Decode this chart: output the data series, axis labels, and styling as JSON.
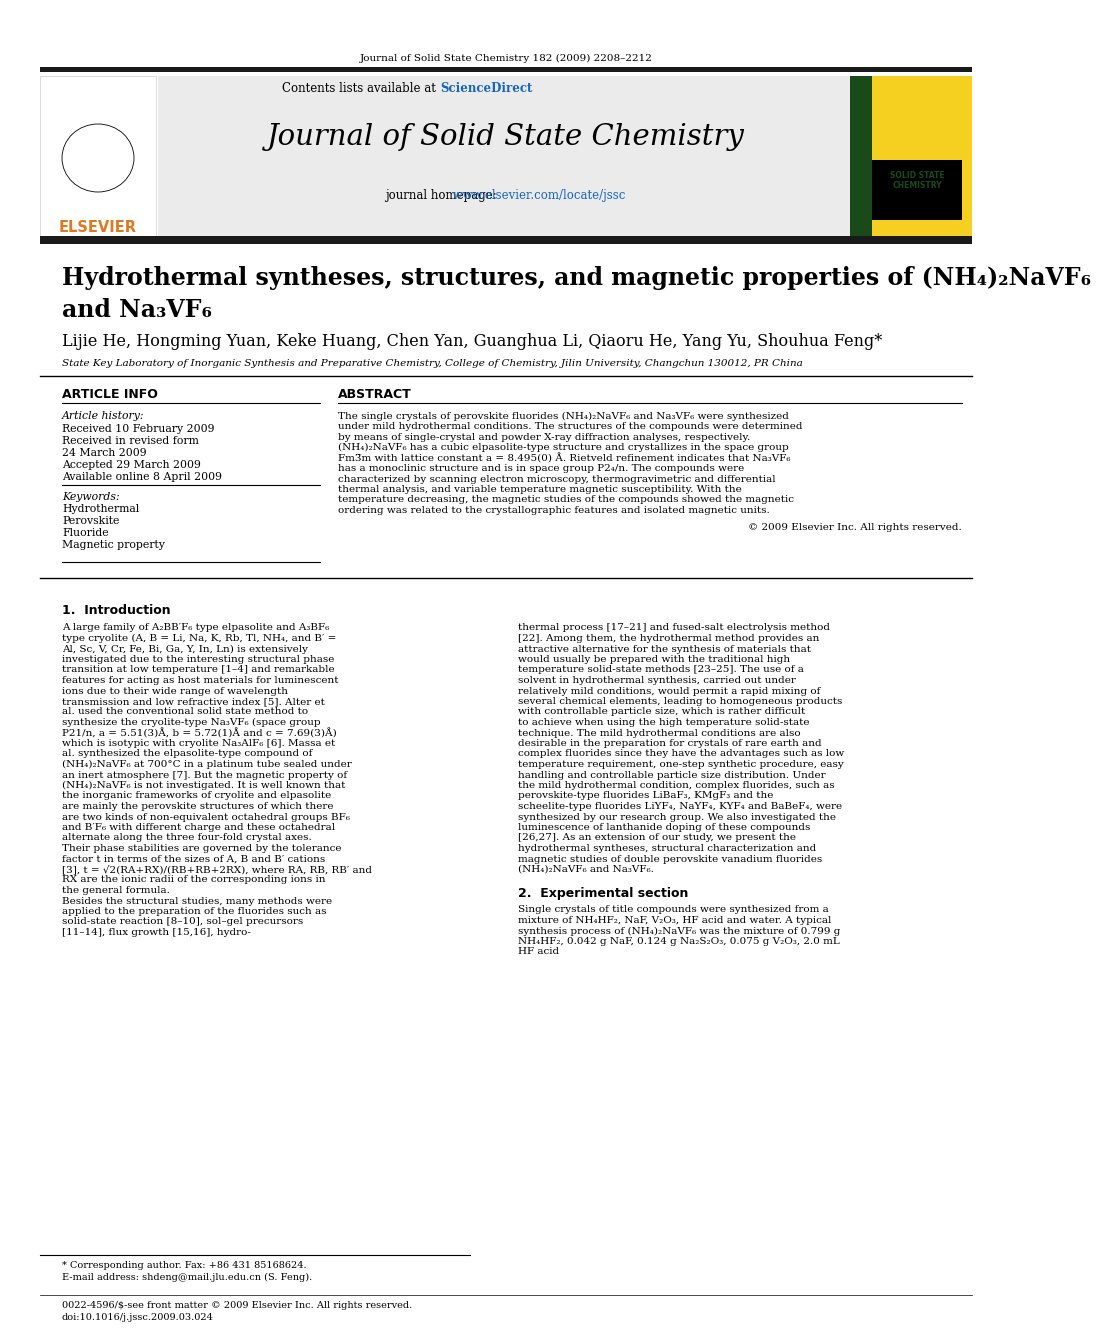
{
  "journal_header": "Journal of Solid State Chemistry 182 (2009) 2208–2212",
  "contents_line": "Contents lists available at ScienceDirect",
  "sciencedirect": "ScienceDirect",
  "journal_name": "Journal of Solid State Chemistry",
  "journal_homepage_plain": "journal homepage: ",
  "journal_homepage_url": "www.elsevier.com/locate/jssc",
  "title_line1": "Hydrothermal syntheses, structures, and magnetic properties of (NH₄)₂NaVF₆",
  "title_line2": "and Na₃VF₆",
  "authors": "Lijie He, Hongming Yuan, Keke Huang, Chen Yan, Guanghua Li, Qiaoru He, Yang Yu, Shouhua Feng*",
  "affiliation": "State Key Laboratory of Inorganic Synthesis and Preparative Chemistry, College of Chemistry, Jilin University, Changchun 130012, PR China",
  "article_info_header": "ARTICLE INFO",
  "article_history_label": "Article history:",
  "received_line": "Received 10 February 2009",
  "revised_line": "Received in revised form",
  "revised_date": "24 March 2009",
  "accepted_line": "Accepted 29 March 2009",
  "available_line": "Available online 8 April 2009",
  "keywords_label": "Keywords:",
  "keywords": [
    "Hydrothermal",
    "Perovskite",
    "Fluoride",
    "Magnetic property"
  ],
  "abstract_header": "ABSTRACT",
  "abstract_text": "The single crystals of perovskite fluorides (NH₄)₂NaVF₆ and Na₃VF₆ were synthesized under mild hydrothermal conditions. The structures of the compounds were determined by means of single-crystal and powder X-ray diffraction analyses, respectively. (NH₄)₂NaVF₆ has a cubic elpasolite-type structure and crystallizes in the space group Fm3̅m with lattice constant a = 8.495(0) Å. Rietveld refinement indicates that Na₃VF₆ has a monoclinic structure and is in space group P2₄/n. The compounds were characterized by scanning electron microscopy, thermogravimetric and differential thermal analysis, and variable temperature magnetic susceptibility. With the temperature decreasing, the magnetic studies of the compounds showed the magnetic ordering was related to the crystallographic features and isolated magnetic units.",
  "copyright_line": "© 2009 Elsevier Inc. All rights reserved.",
  "section1_header": "1.  Introduction",
  "intro_text": "   A large family of A₂BB′F₆ type elpasolite and A₃BF₆ type cryolite (A, B = Li, Na, K, Rb, Tl, NH₄, and B′ = Al, Sc, V, Cr, Fe, Bi, Ga, Y, In, Ln) is extensively investigated due to the interesting structural phase transition at low temperature [1–4] and remarkable features for acting as host materials for luminescent ions due to their wide range of wavelength transmission and low refractive index [5]. Alter et al. used the conventional solid state method to synthesize the cryolite-type Na₃VF₆ (space group P21/n, a = 5.51(3)Å, b = 5.72(1)Å and c = 7.69(3)Å) which is isotypic with cryolite Na₃AlF₆ [6]. Massa et al. synthesized the elpasolite-type compound of (NH₄)₂NaVF₆ at 700°C in a platinum tube sealed under an inert atmosphere [7]. But the magnetic property of (NH₄)₂NaVF₆ is not investigated. It is well known that the inorganic frameworks of cryolite and elpasolite are mainly the perovskite structures of which there are two kinds of non-equivalent octahedral groups BF₆ and B′F₆ with different charge and these octahedral alternate along the three four-fold crystal axes. Their phase stabilities are governed by the tolerance factor t in terms of the sizes of A, B and B′ cations [3], t = √2(RA+RX)/(RB+RB+2RX), where RA, RB, RB′ and RX are the ionic radii of the corresponding ions in the general formula.\n   Besides the structural studies, many methods were applied to the preparation of the fluorides such as solid-state reaction [8–10], sol–gel precursors [11–14], flux growth [15,16], hydro-",
  "right_col_intro": "thermal process [17–21] and fused-salt electrolysis method [22]. Among them, the hydrothermal method provides an attractive alternative for the synthesis of materials that would usually be prepared with the traditional high temperature solid-state methods [23–25]. The use of a solvent in hydrothermal synthesis, carried out under relatively mild conditions, would permit a rapid mixing of several chemical elements, leading to homogeneous products with controllable particle size, which is rather difficult to achieve when using the high temperature solid-state technique. The mild hydrothermal conditions are also desirable in the preparation for crystals of rare earth and complex fluorides since they have the advantages such as low temperature requirement, one-step synthetic procedure, easy handling and controllable particle size distribution. Under the mild hydrothermal condition, complex fluorides, such as perovskite-type fluorides LiBaF₃, KMgF₃ and the scheelite-type fluorides LiYF₄, NaYF₄, KYF₄ and BaBeF₄, were synthesized by our research group. We also investigated the luminescence of lanthanide doping of these compounds [26,27]. As an extension of our study, we present the hydrothermal syntheses, structural characterization and magnetic studies of double perovskite vanadium fluorides (NH₄)₂NaVF₆ and Na₃VF₆.",
  "section2_header": "2.  Experimental section",
  "section2_text": "   Single crystals of title compounds were synthesized from a mixture of NH₄HF₂, NaF, V₂O₃, HF acid and water. A typical synthesis process of (NH₄)₂NaVF₆ was the mixture of 0.799 g NH₄HF₂, 0.042 g NaF, 0.124 g Na₂S₂O₃, 0.075 g V₂O₃, 2.0 mL HF acid",
  "footnote_star": "* Corresponding author. Fax: +86 431 85168624.",
  "footnote_email": "E-mail address: shdeng@mail.jlu.edu.cn (S. Feng).",
  "footer_left": "0022-4596/$-see front matter © 2009 Elsevier Inc. All rights reserved.",
  "footer_doi": "doi:10.1016/j.jssc.2009.03.024",
  "bg_color": "#ffffff",
  "header_bg": "#ebebeb",
  "thick_bar_color": "#1a1a1a",
  "blue_color": "#1565c0",
  "orange_color": "#e07820",
  "yellow_cover_color": "#f5d020",
  "dark_green_cover": "#1a4a1a",
  "elsevier_text": "ELSEVIER",
  "cover_title1": "SOLID STATE",
  "cover_title2": "CHEMISTRY"
}
